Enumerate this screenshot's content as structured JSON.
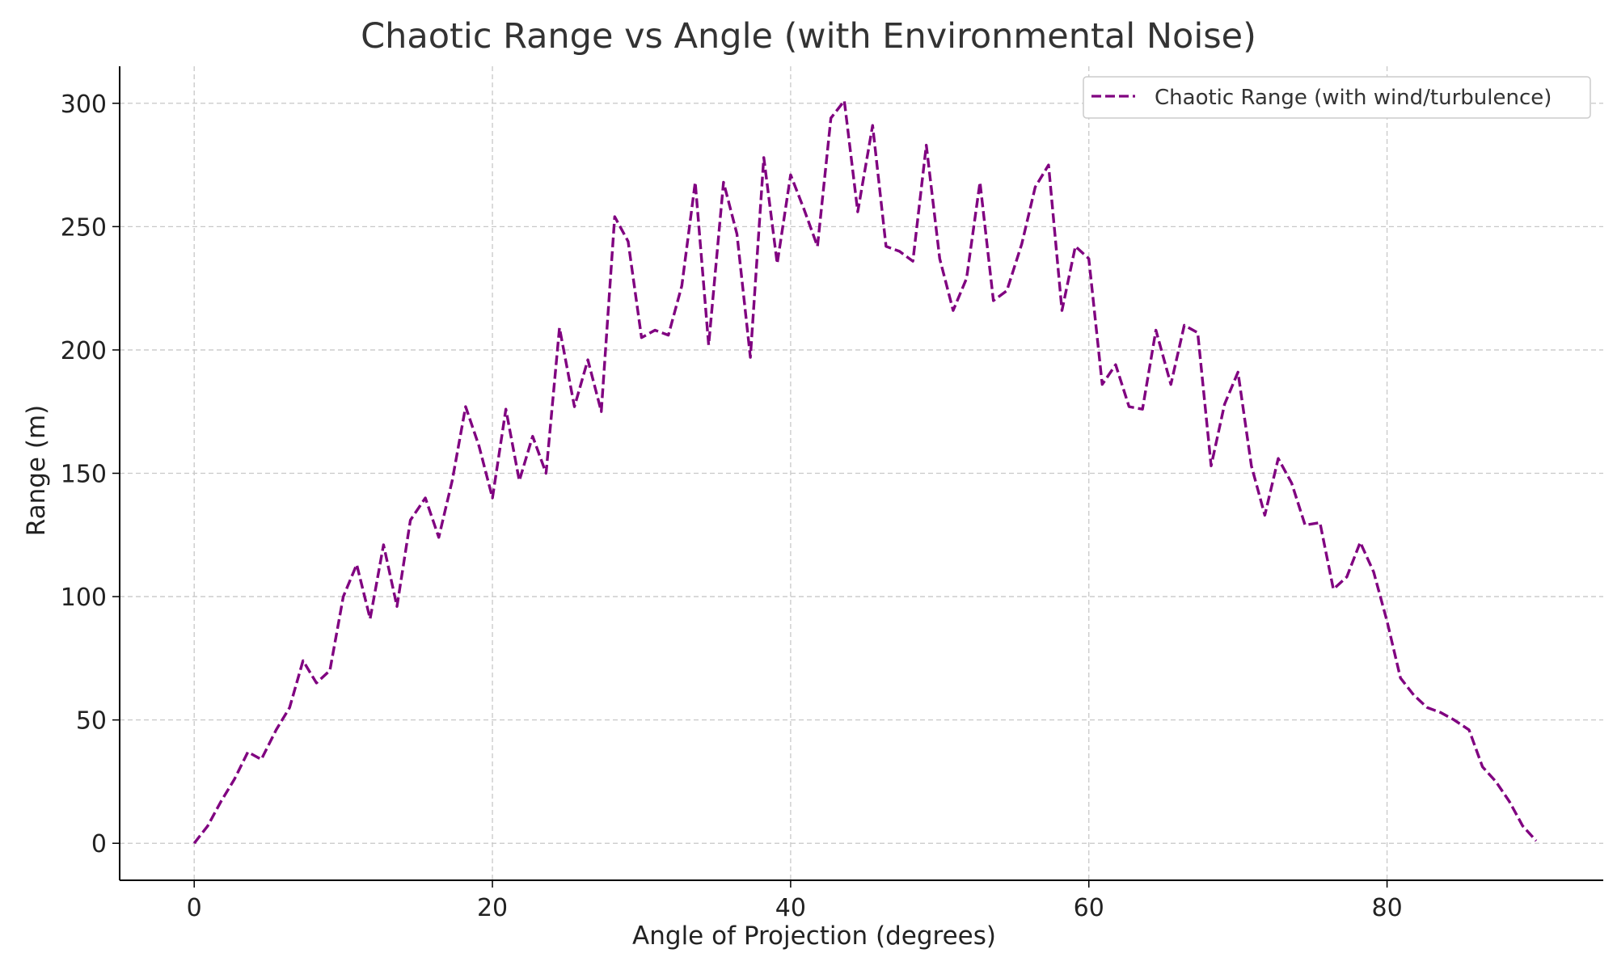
{
  "chart_data": {
    "type": "line",
    "title": "Chaotic Range vs Angle (with Environmental Noise)",
    "xlabel": "Angle of Projection (degrees)",
    "ylabel": "Range (m)",
    "xlim": [
      -5,
      94.5
    ],
    "ylim": [
      -15,
      315
    ],
    "xticks": [
      0,
      20,
      40,
      60,
      80
    ],
    "yticks": [
      0,
      50,
      100,
      150,
      200,
      250,
      300
    ],
    "grid": true,
    "legend_position": "top-right",
    "series": [
      {
        "name": "Chaotic Range (with wind/turbulence)",
        "color": "#800080",
        "line_style": "dashed",
        "x": [
          0,
          0.9,
          1.8,
          2.7,
          3.6,
          4.5,
          5.5,
          6.4,
          7.3,
          8.2,
          9.1,
          10.0,
          10.9,
          11.8,
          12.7,
          13.6,
          14.5,
          15.5,
          16.4,
          17.3,
          18.2,
          19.1,
          20.0,
          20.9,
          21.8,
          22.7,
          23.6,
          24.5,
          25.5,
          26.4,
          27.3,
          28.2,
          29.1,
          30.0,
          30.9,
          31.8,
          32.7,
          33.6,
          34.5,
          35.5,
          36.4,
          37.3,
          38.2,
          39.1,
          40.0,
          40.9,
          41.8,
          42.7,
          43.6,
          44.5,
          45.5,
          46.4,
          47.3,
          48.2,
          49.1,
          50.0,
          50.9,
          51.8,
          52.7,
          53.6,
          54.5,
          55.5,
          56.4,
          57.3,
          58.2,
          59.1,
          60.0,
          60.9,
          61.8,
          62.7,
          63.6,
          64.5,
          65.5,
          66.4,
          67.3,
          68.2,
          69.1,
          70.0,
          70.9,
          71.8,
          72.7,
          73.6,
          74.5,
          75.5,
          76.4,
          77.3,
          78.2,
          79.1,
          80.0,
          80.9,
          81.8,
          82.7,
          83.6,
          84.5,
          85.5,
          86.4,
          87.3,
          88.2,
          89.1,
          90.0
        ],
        "y": [
          0,
          7,
          17,
          26,
          37,
          34,
          46,
          55,
          74,
          65,
          70,
          100,
          113,
          91,
          121,
          96,
          131,
          140,
          124,
          147,
          177,
          161,
          140,
          176,
          147,
          165,
          150,
          209,
          177,
          196,
          175,
          254,
          244,
          205,
          208,
          206,
          226,
          268,
          202,
          268,
          247,
          197,
          278,
          235,
          271,
          257,
          242,
          294,
          301,
          256,
          291,
          242,
          240,
          236,
          283,
          237,
          216,
          229,
          268,
          220,
          224,
          243,
          266,
          275,
          216,
          242,
          237,
          186,
          194,
          177,
          176,
          208,
          186,
          210,
          207,
          153,
          178,
          191,
          153,
          133,
          156,
          146,
          129,
          130,
          103,
          108,
          122,
          110,
          90,
          67,
          60,
          55,
          53,
          50,
          46,
          31,
          25,
          17,
          7,
          1
        ]
      }
    ]
  }
}
